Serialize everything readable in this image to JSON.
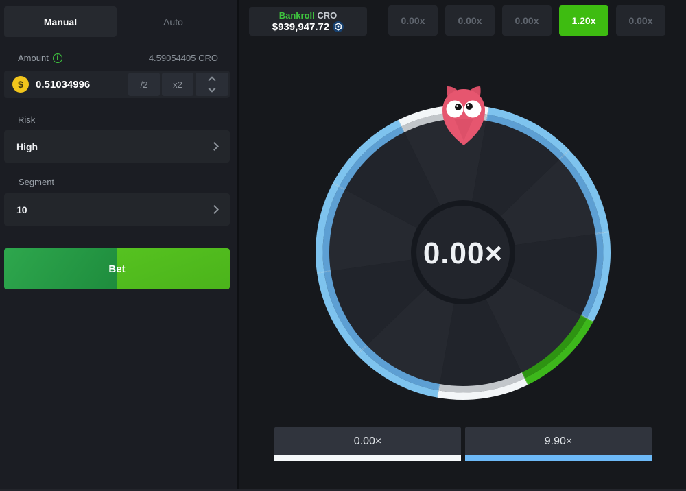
{
  "left_panel": {
    "tabs": {
      "manual": "Manual",
      "auto": "Auto"
    },
    "amount": {
      "label": "Amount",
      "converted": "4.59054405 CRO",
      "value": "0.51034996",
      "half": "/2",
      "double": "x2"
    },
    "risk": {
      "label": "Risk",
      "value": "High"
    },
    "segment": {
      "label": "Segment",
      "value": "10"
    },
    "bet_label": "Bet"
  },
  "header": {
    "bankroll": {
      "title": "Bankroll",
      "currency": "CRO",
      "amount": "$939,947.72"
    },
    "history": {
      "items": [
        "0.00x",
        "0.00x",
        "0.00x",
        "1.20x",
        "0.00x"
      ],
      "highlight_index": 3,
      "highlight_color": "#3ebc11"
    }
  },
  "wheel": {
    "center_label": "0.00×",
    "segment_count": 10,
    "start_angle_deg": -26,
    "segments": [
      "white",
      "blue",
      "blue",
      "blue",
      "green",
      "white",
      "blue",
      "blue",
      "blue",
      "blue"
    ],
    "palette": {
      "blue": {
        "outer": "#7ec3ee",
        "inner": "#5d9fd3"
      },
      "white": {
        "outer": "#f3f6f8",
        "inner": "#c2c6ca"
      },
      "green": {
        "outer": "#3db71b",
        "inner": "#2e9412"
      }
    },
    "interior_shades": [
      "#262930",
      "#21242b"
    ],
    "hub": {
      "fill": "#22252c",
      "ring": "#15181e"
    },
    "separator_color": "rgba(240,244,248,0.22)"
  },
  "results": {
    "items": [
      {
        "label": "0.00×",
        "underline_color": "#f5f8fa"
      },
      {
        "label": "9.90×",
        "underline_color": "#6db9f7"
      }
    ]
  },
  "icons": {
    "amount_currency": "dollar-coin-icon",
    "amount_info": "info-icon",
    "bankroll_currency": "cro-icon",
    "mascot": "owl-pointer-icon"
  }
}
